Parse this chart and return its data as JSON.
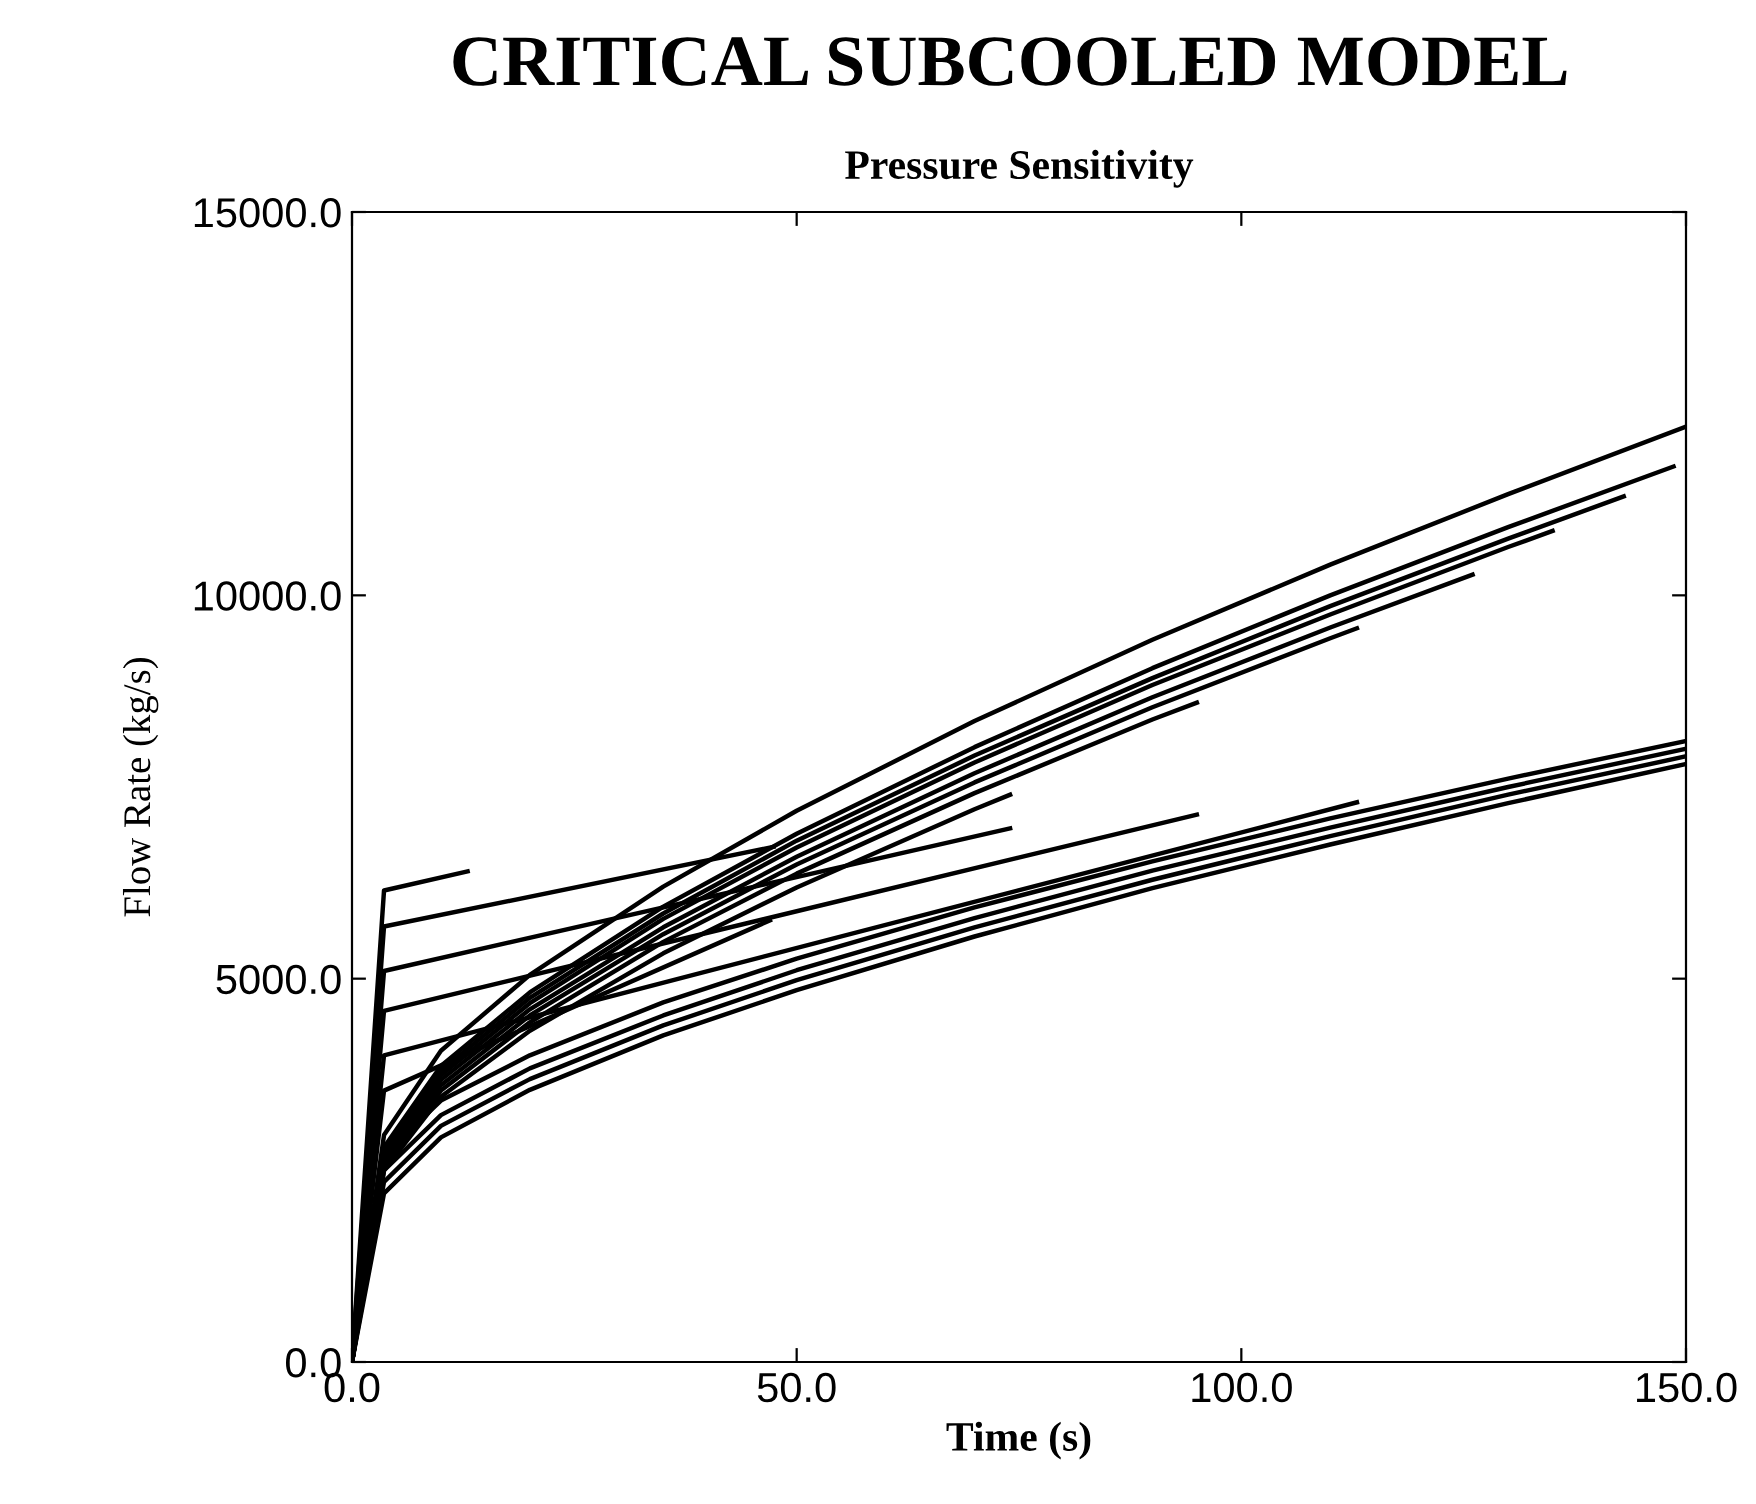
{
  "chart_data": {
    "type": "line",
    "title": "CRITICAL SUBCOOLED MODEL",
    "subtitle": "Pressure Sensitivity",
    "xlabel": "Time (s)",
    "ylabel": "Flow Rate (kg/s)",
    "xlim": [
      0,
      150
    ],
    "ylim": [
      0,
      15000
    ],
    "xticks": [
      {
        "value": 0,
        "label": "0.0"
      },
      {
        "value": 50,
        "label": "50.0"
      },
      {
        "value": 100,
        "label": "100.0"
      },
      {
        "value": 150,
        "label": "150.0"
      }
    ],
    "yticks": [
      {
        "value": 0,
        "label": "0.0"
      },
      {
        "value": 5000,
        "label": "5000.0"
      },
      {
        "value": 10000,
        "label": "10000.0"
      },
      {
        "value": 15000,
        "label": "15000.0"
      }
    ],
    "grid": false,
    "marker": "none",
    "line_style": "solid",
    "series": [
      {
        "color": "#000000",
        "x": [
          0,
          3.6,
          10,
          20,
          35,
          50,
          70,
          90,
          110,
          130,
          150
        ],
        "values": [
          0,
          2960,
          4060,
          5050,
          6200,
          7190,
          8360,
          9420,
          10400,
          11320,
          12200
        ]
      },
      {
        "color": "#000000",
        "x": [
          0,
          3.6,
          10,
          20,
          35,
          50,
          70,
          90,
          110,
          130,
          148.6
        ],
        "values": [
          0,
          2800,
          3860,
          4820,
          5940,
          6890,
          8020,
          9050,
          10000,
          10890,
          11680
        ]
      },
      {
        "color": "#000000",
        "x": [
          0,
          3.6,
          10,
          20,
          35,
          50,
          70,
          90,
          110,
          130,
          143
        ],
        "values": [
          0,
          2750,
          3800,
          4750,
          5850,
          6800,
          7910,
          8920,
          9860,
          10740,
          11290
        ]
      },
      {
        "color": "#000000",
        "x": [
          0,
          3.6,
          10,
          20,
          35,
          50,
          70,
          90,
          110,
          130,
          135
        ],
        "values": [
          0,
          2700,
          3740,
          4680,
          5780,
          6710,
          7820,
          8830,
          9750,
          10630,
          10840
        ]
      },
      {
        "color": "#000000",
        "x": [
          0,
          3.6,
          10,
          20,
          35,
          50,
          70,
          90,
          110,
          126
        ],
        "values": [
          0,
          2650,
          3680,
          4600,
          5670,
          6590,
          7680,
          8670,
          9580,
          10270
        ]
      },
      {
        "color": "#000000",
        "x": [
          0,
          3.6,
          10,
          20,
          35,
          50,
          70,
          90,
          110,
          113
        ],
        "values": [
          0,
          2600,
          3610,
          4520,
          5580,
          6490,
          7560,
          8540,
          9440,
          9570
        ]
      },
      {
        "color": "#000000",
        "x": [
          0,
          3.6,
          10,
          20,
          35,
          50,
          70,
          90,
          95
        ],
        "values": [
          0,
          2550,
          3540,
          4430,
          5480,
          6370,
          7420,
          8380,
          8600
        ]
      },
      {
        "color": "#000000",
        "x": [
          0,
          3.6,
          10,
          20,
          35,
          50,
          70,
          74
        ],
        "values": [
          0,
          2500,
          3460,
          4320,
          5330,
          6190,
          7210,
          7400
        ]
      },
      {
        "color": "#000000",
        "x": [
          0,
          3.6,
          10,
          20,
          35,
          50,
          70,
          90,
          110,
          130,
          150
        ],
        "values": [
          0,
          2700,
          3410,
          4000,
          4690,
          5260,
          5930,
          6530,
          7090,
          7610,
          8100
        ]
      },
      {
        "color": "#000000",
        "x": [
          0,
          3.6,
          10,
          20,
          35,
          50,
          70,
          90,
          110,
          130,
          150
        ],
        "values": [
          0,
          2500,
          3220,
          3830,
          4520,
          5110,
          5790,
          6410,
          6970,
          7500,
          8000
        ]
      },
      {
        "color": "#000000",
        "x": [
          0,
          3.6,
          10,
          20,
          35,
          50,
          70,
          90,
          110,
          130,
          150
        ],
        "values": [
          0,
          2350,
          3080,
          3690,
          4390,
          4980,
          5670,
          6290,
          6860,
          7400,
          7900
        ]
      },
      {
        "color": "#000000",
        "x": [
          0,
          3.6,
          10,
          20,
          35,
          50,
          70,
          90,
          110,
          130,
          150
        ],
        "values": [
          0,
          2200,
          2930,
          3550,
          4260,
          4850,
          5550,
          6180,
          6750,
          7290,
          7800
        ]
      },
      {
        "color": "#000000",
        "x": [
          0,
          3.6,
          13
        ],
        "values": [
          0,
          6150,
          6400
        ]
      },
      {
        "color": "#000000",
        "x": [
          0,
          3.6,
          47.4
        ],
        "values": [
          0,
          5680,
          6720
        ]
      },
      {
        "color": "#000000",
        "x": [
          0,
          3.6,
          74
        ],
        "values": [
          0,
          5100,
          6960
        ]
      },
      {
        "color": "#000000",
        "x": [
          0,
          3.6,
          95
        ],
        "values": [
          0,
          4580,
          7140
        ]
      },
      {
        "color": "#000000",
        "x": [
          0,
          3.6,
          113
        ],
        "values": [
          0,
          4000,
          7300
        ]
      },
      {
        "color": "#000000",
        "x": [
          0,
          3.6,
          47
        ],
        "values": [
          0,
          3540,
          5760
        ]
      }
    ]
  }
}
